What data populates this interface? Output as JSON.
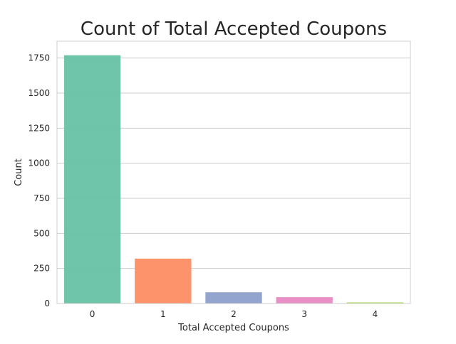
{
  "chart_data": {
    "type": "bar",
    "title": "Count of Total Accepted Coupons",
    "xlabel": "Total Accepted Coupons",
    "ylabel": "Count",
    "categories": [
      "0",
      "1",
      "2",
      "3",
      "4"
    ],
    "values": [
      1770,
      320,
      80,
      45,
      8
    ],
    "colors": [
      "#66c2a5",
      "#fc8d62",
      "#8da0cb",
      "#e78ac3",
      "#a6d854"
    ],
    "ylim": [
      0,
      1870
    ],
    "yticks": [
      0,
      250,
      500,
      750,
      1000,
      1250,
      1500,
      1750
    ],
    "grid": "horizontal",
    "style": "whitegrid"
  }
}
